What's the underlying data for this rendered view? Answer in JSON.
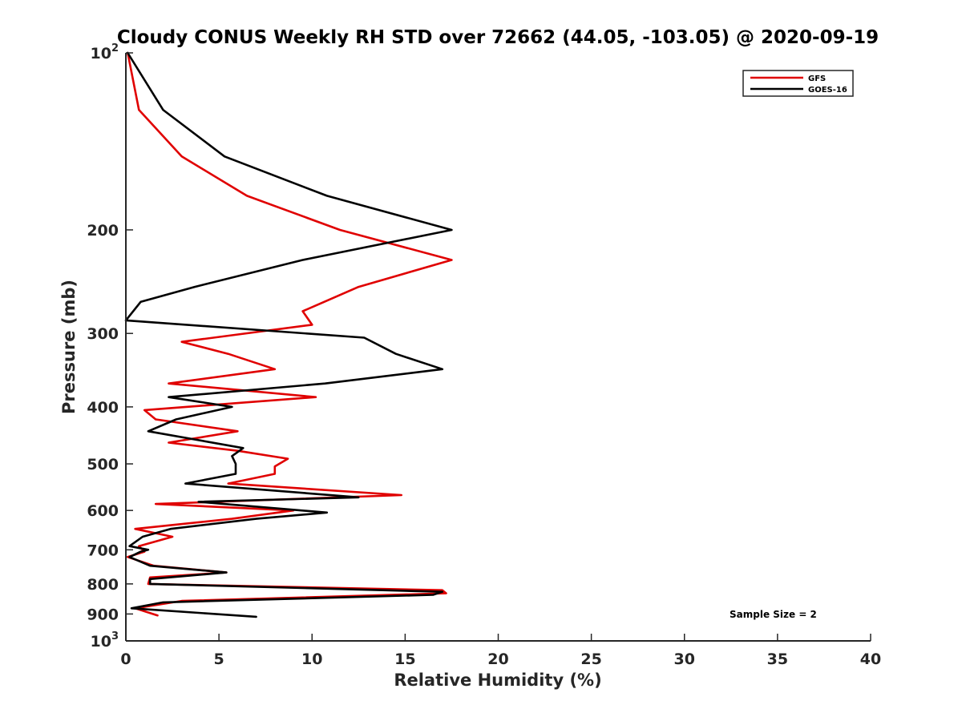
{
  "chart_data": {
    "type": "line",
    "title": "Cloudy CONUS Weekly RH STD over 72662 (44.05, -103.05) @ 2020-09-19",
    "xlabel": "Relative Humidity (%)",
    "ylabel": "Pressure (mb)",
    "xlim": [
      0,
      40
    ],
    "ylim": [
      100,
      1000
    ],
    "y_scale": "log",
    "y_reversed": true,
    "x_ticks": [
      "0",
      "5",
      "10",
      "15",
      "20",
      "25",
      "30",
      "35",
      "40"
    ],
    "y_ticks": [
      {
        "value": 100,
        "base": "10",
        "exp": "2"
      },
      {
        "value": 200,
        "label": "200"
      },
      {
        "value": 300,
        "label": "300"
      },
      {
        "value": 400,
        "label": "400"
      },
      {
        "value": 500,
        "label": "500"
      },
      {
        "value": 600,
        "label": "600"
      },
      {
        "value": 700,
        "label": "700"
      },
      {
        "value": 800,
        "label": "800"
      },
      {
        "value": 900,
        "label": "900"
      },
      {
        "value": 1000,
        "base": "10",
        "exp": "3"
      }
    ],
    "grid": false,
    "legend_position": "top-right",
    "annotation": "Sample Size = 2",
    "series": [
      {
        "name": "GFS",
        "color": "#e00000",
        "points": [
          [
            0.1,
            100
          ],
          [
            0.7,
            125
          ],
          [
            3.0,
            150
          ],
          [
            6.5,
            175
          ],
          [
            11.5,
            200
          ],
          [
            17.5,
            225
          ],
          [
            12.5,
            250
          ],
          [
            9.5,
            275
          ],
          [
            10.0,
            290
          ],
          [
            3.0,
            310
          ],
          [
            5.5,
            325
          ],
          [
            8.0,
            345
          ],
          [
            2.3,
            365
          ],
          [
            10.2,
            385
          ],
          [
            1.0,
            405
          ],
          [
            1.6,
            420
          ],
          [
            6.0,
            440
          ],
          [
            2.3,
            460
          ],
          [
            6.0,
            475
          ],
          [
            8.7,
            490
          ],
          [
            8.0,
            505
          ],
          [
            8.0,
            520
          ],
          [
            5.5,
            540
          ],
          [
            14.8,
            565
          ],
          [
            1.6,
            585
          ],
          [
            9.0,
            600
          ],
          [
            5.7,
            620
          ],
          [
            0.5,
            645
          ],
          [
            2.5,
            665
          ],
          [
            0.7,
            690
          ],
          [
            1.0,
            705
          ],
          [
            0.1,
            720
          ],
          [
            1.5,
            745
          ],
          [
            5.4,
            765
          ],
          [
            1.3,
            780
          ],
          [
            1.2,
            800
          ],
          [
            17.0,
            820
          ],
          [
            17.2,
            830
          ],
          [
            3.0,
            855
          ],
          [
            0.5,
            880
          ],
          [
            1.7,
            905
          ]
        ]
      },
      {
        "name": "GOES-16",
        "color": "#000000",
        "points": [
          [
            0.1,
            100
          ],
          [
            2.0,
            125
          ],
          [
            5.3,
            150
          ],
          [
            10.8,
            175
          ],
          [
            17.5,
            200
          ],
          [
            9.5,
            225
          ],
          [
            3.7,
            250
          ],
          [
            0.8,
            265
          ],
          [
            0.0,
            285
          ],
          [
            12.8,
            305
          ],
          [
            14.5,
            325
          ],
          [
            17.0,
            345
          ],
          [
            10.7,
            365
          ],
          [
            2.3,
            385
          ],
          [
            5.7,
            400
          ],
          [
            2.7,
            420
          ],
          [
            1.2,
            440
          ],
          [
            6.3,
            470
          ],
          [
            5.7,
            485
          ],
          [
            5.9,
            500
          ],
          [
            5.9,
            520
          ],
          [
            3.2,
            540
          ],
          [
            12.5,
            570
          ],
          [
            3.9,
            580
          ],
          [
            10.8,
            605
          ],
          [
            7.0,
            620
          ],
          [
            2.4,
            645
          ],
          [
            0.9,
            665
          ],
          [
            0.2,
            690
          ],
          [
            1.2,
            700
          ],
          [
            0.8,
            705
          ],
          [
            0.2,
            720
          ],
          [
            1.3,
            745
          ],
          [
            5.4,
            765
          ],
          [
            1.3,
            785
          ],
          [
            1.3,
            800
          ],
          [
            17.0,
            825
          ],
          [
            16.5,
            835
          ],
          [
            2.0,
            860
          ],
          [
            0.3,
            880
          ],
          [
            7.0,
            910
          ]
        ]
      }
    ]
  }
}
